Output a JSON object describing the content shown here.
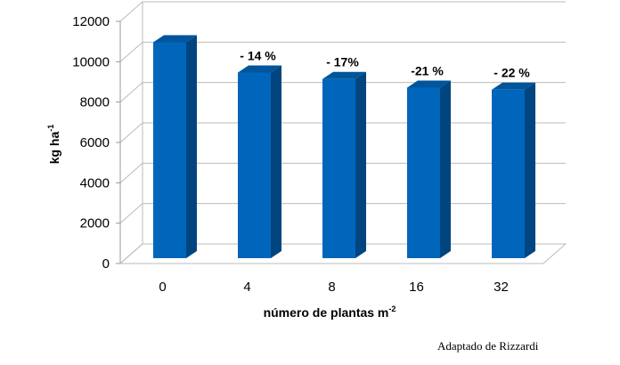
{
  "chart_data": {
    "type": "bar",
    "title": "",
    "xlabel": "número de plantas m",
    "xlabel_sup": "-2",
    "ylabel": "kg ha",
    "ylabel_sup": "-1",
    "categories": [
      "0",
      "4",
      "8",
      "16",
      "32"
    ],
    "values": [
      10700,
      9200,
      8880,
      8450,
      8350
    ],
    "data_labels": [
      "",
      "- 14 %",
      "- 17%",
      "-21 %",
      "- 22 %"
    ],
    "ylim": [
      0,
      12000
    ],
    "yticks": [
      0,
      2000,
      4000,
      6000,
      8000,
      10000,
      12000
    ],
    "grid": true,
    "bar_color": "#0066bb",
    "bar_side_color": "#00457f",
    "bar_top_color": "#00559c"
  },
  "credit": "Adaptado de  Rizzardi"
}
